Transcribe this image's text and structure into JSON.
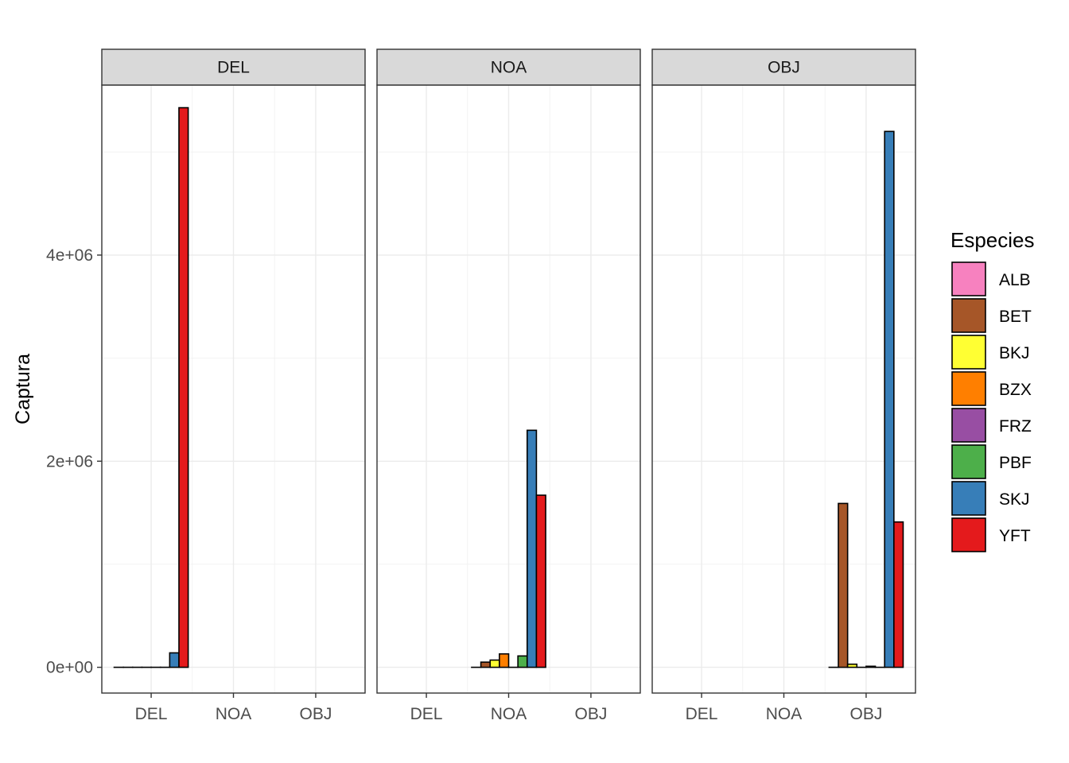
{
  "chart_data": {
    "type": "bar",
    "facet_by": "Flag",
    "facets": [
      "DEL",
      "NOA",
      "OBJ"
    ],
    "categories": [
      "DEL",
      "NOA",
      "OBJ"
    ],
    "xlabel": "",
    "ylabel": "Captura",
    "ylim": [
      -250000,
      5650000
    ],
    "yticks": [
      0,
      2000000,
      4000000
    ],
    "ytick_labels": [
      "0e+00",
      "2e+06",
      "4e+06"
    ],
    "grid": true,
    "legend": {
      "title": "Especies",
      "position": "right",
      "entries": [
        "ALB",
        "BET",
        "BKJ",
        "BZX",
        "FRZ",
        "PBF",
        "SKJ",
        "YFT"
      ]
    },
    "colors": {
      "ALB": "#F781BF",
      "BET": "#A65628",
      "BKJ": "#FFFF33",
      "BZX": "#FF7F00",
      "FRZ": "#984EA3",
      "PBF": "#4DAF4A",
      "SKJ": "#377EB8",
      "YFT": "#E41A1C"
    },
    "panels": [
      {
        "facet": "DEL",
        "category": "DEL",
        "series": [
          {
            "name": "ALB",
            "value": 0
          },
          {
            "name": "BET",
            "value": 0
          },
          {
            "name": "BKJ",
            "value": 0
          },
          {
            "name": "BZX",
            "value": 0
          },
          {
            "name": "FRZ",
            "value": 0
          },
          {
            "name": "PBF",
            "value": 0
          },
          {
            "name": "SKJ",
            "value": 140000
          },
          {
            "name": "YFT",
            "value": 5430000
          }
        ]
      },
      {
        "facet": "NOA",
        "category": "NOA",
        "series": [
          {
            "name": "ALB",
            "value": 0
          },
          {
            "name": "BET",
            "value": 50000
          },
          {
            "name": "BKJ",
            "value": 70000
          },
          {
            "name": "BZX",
            "value": 130000
          },
          {
            "name": "FRZ",
            "value": 0
          },
          {
            "name": "PBF",
            "value": 110000
          },
          {
            "name": "SKJ",
            "value": 2300000
          },
          {
            "name": "YFT",
            "value": 1670000
          }
        ]
      },
      {
        "facet": "OBJ",
        "category": "OBJ",
        "series": [
          {
            "name": "ALB",
            "value": 0
          },
          {
            "name": "BET",
            "value": 1590000
          },
          {
            "name": "BKJ",
            "value": 30000
          },
          {
            "name": "BZX",
            "value": 0
          },
          {
            "name": "FRZ",
            "value": 10000
          },
          {
            "name": "PBF",
            "value": 0
          },
          {
            "name": "SKJ",
            "value": 5200000
          },
          {
            "name": "YFT",
            "value": 1410000
          }
        ]
      }
    ]
  }
}
